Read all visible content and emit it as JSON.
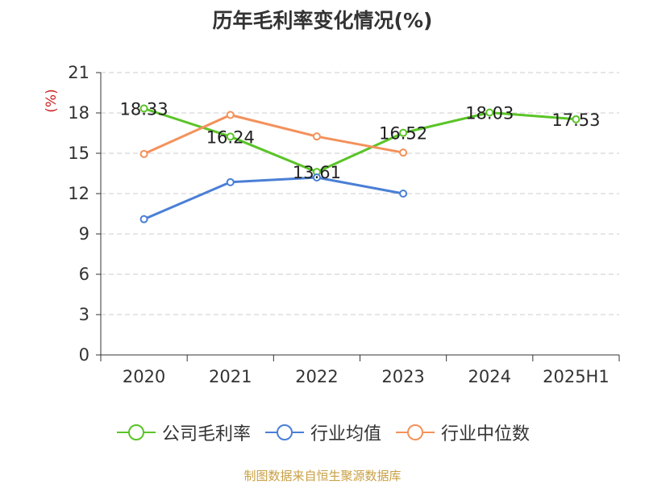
{
  "chart_data": {
    "type": "line",
    "title": "历年毛利率变化情况(%)",
    "ylabel": "(%)",
    "xlabel": "",
    "categories": [
      "2020",
      "2021",
      "2022",
      "2023",
      "2024",
      "2025H1"
    ],
    "ylim": [
      0,
      21
    ],
    "yticks": [
      0,
      3,
      6,
      9,
      12,
      15,
      18,
      21
    ],
    "grid": true,
    "legend_position": "bottom",
    "series": [
      {
        "name": "公司毛利率",
        "color": "#5ac427",
        "values": [
          18.33,
          16.24,
          13.61,
          16.52,
          18.03,
          17.53
        ],
        "show_labels": true
      },
      {
        "name": "行业均值",
        "color": "#4a7fd6",
        "values": [
          10.1,
          12.85,
          13.2,
          12.0,
          null,
          null
        ],
        "show_labels": false
      },
      {
        "name": "行业中位数",
        "color": "#f4915b",
        "values": [
          14.95,
          17.85,
          16.25,
          15.05,
          null,
          null
        ],
        "show_labels": false
      }
    ]
  },
  "footer": {
    "source": "制图数据来自恒生聚源数据库"
  }
}
